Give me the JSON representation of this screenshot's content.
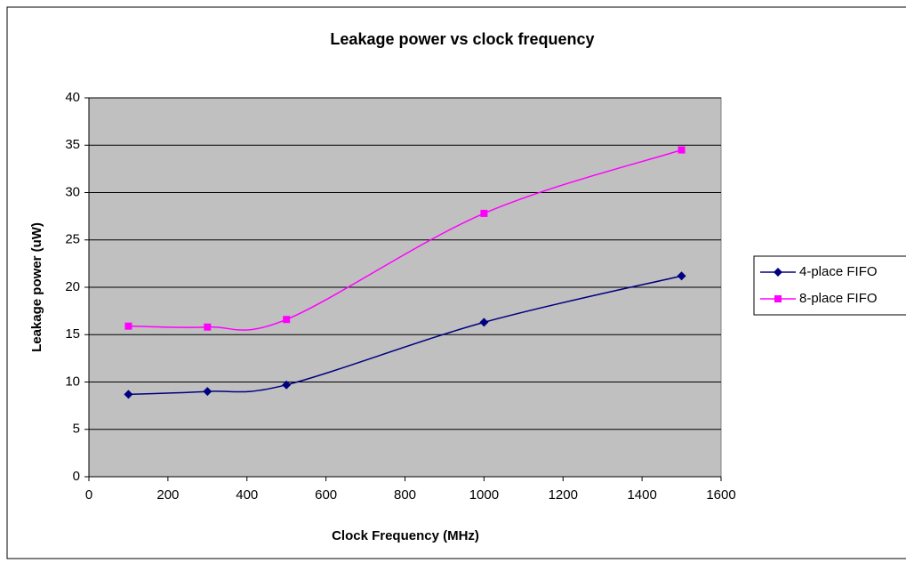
{
  "chart_data": {
    "type": "line",
    "title": "Leakage power vs clock frequency",
    "xlabel": "Clock Frequency (MHz)",
    "ylabel": "Leakage power (uW)",
    "x": [
      100,
      300,
      500,
      1000,
      1500
    ],
    "series": [
      {
        "name": "4-place FIFO",
        "color": "#000080",
        "marker": "diamond",
        "values": [
          8.7,
          9.0,
          9.7,
          16.3,
          21.2
        ]
      },
      {
        "name": "8-place FIFO",
        "color": "#ff00ff",
        "marker": "square",
        "values": [
          15.9,
          15.8,
          16.6,
          27.8,
          34.5
        ]
      }
    ],
    "xlim": [
      0,
      1600
    ],
    "xticks": [
      0,
      200,
      400,
      600,
      800,
      1000,
      1200,
      1400,
      1600
    ],
    "ylim": [
      0,
      40
    ],
    "yticks": [
      0,
      5,
      10,
      15,
      20,
      25,
      30,
      35,
      40
    ],
    "grid": true,
    "smooth": true,
    "legend": "right",
    "plot_background": "#c0c0c0"
  }
}
